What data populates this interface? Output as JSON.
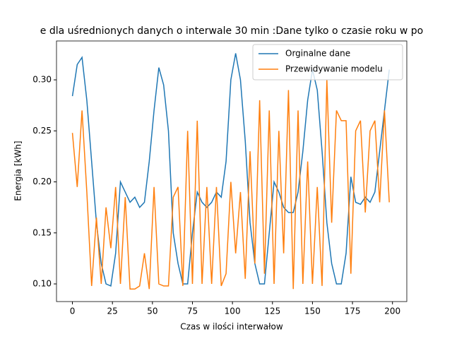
{
  "chart_data": {
    "type": "line",
    "title": "e dla uśrednionych danych o interwale 30 min :Dane tylko o czasie roku w po",
    "xlabel": "Czas w ilości interwałow",
    "ylabel": "Energia [kWh]",
    "x": [
      0,
      3,
      6,
      9,
      12,
      15,
      18,
      21,
      24,
      27,
      30,
      33,
      36,
      39,
      42,
      45,
      48,
      51,
      54,
      57,
      60,
      63,
      66,
      69,
      72,
      75,
      78,
      81,
      84,
      87,
      90,
      93,
      96,
      99,
      102,
      105,
      108,
      111,
      114,
      117,
      120,
      123,
      126,
      129,
      132,
      135,
      138,
      141,
      144,
      147,
      150,
      153,
      156,
      159,
      162,
      165,
      168,
      171,
      174,
      177,
      180,
      183,
      186,
      189,
      192,
      195,
      198
    ],
    "series": [
      {
        "name": "Orginalne dane",
        "color": "#1f77b4",
        "values": [
          0.284,
          0.315,
          0.322,
          0.28,
          0.22,
          0.16,
          0.12,
          0.1,
          0.098,
          0.13,
          0.2,
          0.19,
          0.18,
          0.185,
          0.175,
          0.18,
          0.22,
          0.27,
          0.312,
          0.295,
          0.25,
          0.15,
          0.12,
          0.1,
          0.1,
          0.15,
          0.19,
          0.18,
          0.175,
          0.18,
          0.19,
          0.185,
          0.22,
          0.3,
          0.326,
          0.3,
          0.24,
          0.16,
          0.12,
          0.1,
          0.1,
          0.15,
          0.2,
          0.19,
          0.175,
          0.17,
          0.17,
          0.19,
          0.23,
          0.28,
          0.31,
          0.29,
          0.23,
          0.16,
          0.12,
          0.1,
          0.1,
          0.13,
          0.205,
          0.18,
          0.178,
          0.185,
          0.18,
          0.19,
          0.23,
          0.27,
          0.31
        ]
      },
      {
        "name": "Przewidywanie modelu",
        "color": "#ff7f0e",
        "values": [
          0.248,
          0.195,
          0.27,
          0.19,
          0.098,
          0.165,
          0.1,
          0.175,
          0.135,
          0.195,
          0.1,
          0.185,
          0.095,
          0.095,
          0.098,
          0.13,
          0.095,
          0.195,
          0.1,
          0.098,
          0.098,
          0.185,
          0.195,
          0.098,
          0.25,
          0.1,
          0.26,
          0.1,
          0.195,
          0.1,
          0.195,
          0.098,
          0.11,
          0.2,
          0.13,
          0.19,
          0.105,
          0.23,
          0.12,
          0.28,
          0.11,
          0.27,
          0.1,
          0.25,
          0.13,
          0.29,
          0.095,
          0.27,
          0.1,
          0.22,
          0.1,
          0.195,
          0.098,
          0.3,
          0.16,
          0.27,
          0.26,
          0.26,
          0.11,
          0.25,
          0.26,
          0.17,
          0.25,
          0.26,
          0.18,
          0.27,
          0.18
        ]
      }
    ],
    "xlim": [
      -9.95,
      208.95
    ],
    "ylim": [
      0.0827,
      0.3381
    ],
    "xticks": [
      0,
      25,
      50,
      75,
      100,
      125,
      150,
      175,
      200
    ],
    "yticks": [
      {
        "value": 0.1,
        "label": "0.10"
      },
      {
        "value": 0.15,
        "label": "0.15"
      },
      {
        "value": 0.2,
        "label": "0.20"
      },
      {
        "value": 0.25,
        "label": "0.25"
      },
      {
        "value": 0.3,
        "label": "0.30"
      }
    ],
    "legend": "upper right"
  }
}
